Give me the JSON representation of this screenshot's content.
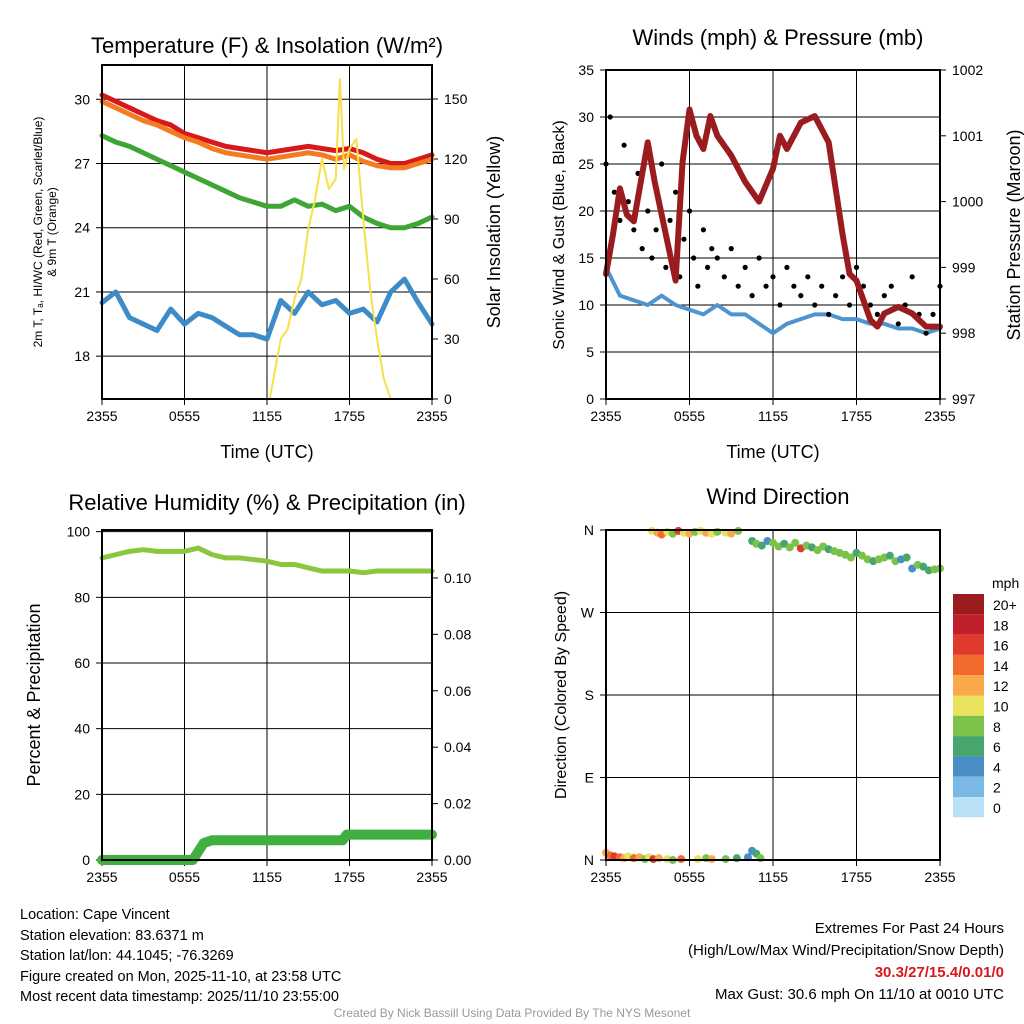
{
  "footer": {
    "location": "Location: Cape Vincent",
    "elevation": "Station elevation: 83.6371 m",
    "latlon": "Station lat/lon: 44.1045; -76.3269",
    "created": "Figure created on Mon, 2025-11-10, at 23:58 UTC",
    "recent": "Most recent data timestamp: 2025/11/10 23:55:00",
    "extremes_title": "Extremes For Past 24 Hours",
    "extremes_sub": "(High/Low/Max Wind/Precipitation/Snow Depth)",
    "extremes_values": "30.3/27/15.4/0.01/0",
    "max_gust": "Max Gust: 30.6 mph On 11/10 at 0010 UTC",
    "credit": "Created By Nick Bassill Using Data Provided By The NYS Mesonet"
  },
  "chart_data": [
    {
      "type": "line",
      "title": "Temperature (F) & Insolation (W/m²)",
      "xlabel": "Time (UTC)",
      "ylabel": "2m T, Td, HI/WC (Red, Green, Scarlet/Blue) & 9m T (Orange)",
      "ylabel_l1": "2m T, Tₐ, HI/WC (Red, Green, Scarlet/Blue)",
      "ylabel_l2": "& 9m T (Orange)",
      "y2label": "Solar Insolation (Yellow)",
      "xticks": [
        "2355",
        "0555",
        "1155",
        "1755",
        "2355"
      ],
      "ylim": [
        16,
        31.6
      ],
      "yticks": [
        18,
        21,
        24,
        27,
        30
      ],
      "y2lim": [
        0,
        167
      ],
      "y2ticks": [
        0,
        30,
        60,
        90,
        120,
        150
      ],
      "x_hours": [
        0,
        1,
        2,
        3,
        4,
        5,
        6,
        7,
        8,
        9,
        10,
        11,
        12,
        13,
        14,
        15,
        16,
        17,
        18,
        19,
        20,
        21,
        22,
        23,
        24
      ],
      "series": [
        {
          "name": "2m T",
          "color": "#d7191c",
          "axis": "left",
          "values": [
            30.2,
            29.9,
            29.6,
            29.3,
            29.0,
            28.8,
            28.4,
            28.2,
            28.0,
            27.8,
            27.7,
            27.6,
            27.5,
            27.6,
            27.7,
            27.8,
            27.7,
            27.6,
            27.7,
            27.5,
            27.2,
            27.0,
            27.0,
            27.2,
            27.4
          ]
        },
        {
          "name": "9m T",
          "color": "#f47b20",
          "axis": "left",
          "values": [
            29.9,
            29.6,
            29.3,
            29.0,
            28.8,
            28.5,
            28.2,
            28.0,
            27.7,
            27.5,
            27.4,
            27.3,
            27.2,
            27.3,
            27.4,
            27.5,
            27.4,
            27.2,
            27.4,
            27.1,
            26.9,
            26.8,
            26.8,
            27.0,
            27.2
          ]
        },
        {
          "name": "Td",
          "color": "#3fa535",
          "axis": "left",
          "values": [
            28.3,
            28.0,
            27.8,
            27.5,
            27.2,
            26.9,
            26.6,
            26.3,
            26.0,
            25.7,
            25.4,
            25.2,
            25.0,
            25.0,
            25.3,
            25.0,
            25.1,
            24.8,
            25.0,
            24.5,
            24.2,
            24.0,
            24.0,
            24.2,
            24.5
          ]
        },
        {
          "name": "WC",
          "color": "#3d8cc7",
          "axis": "left",
          "values": [
            20.5,
            21.0,
            19.8,
            19.5,
            19.2,
            20.2,
            19.5,
            20.0,
            19.8,
            19.4,
            19.0,
            19.0,
            18.8,
            20.6,
            20.0,
            21.0,
            20.4,
            20.6,
            20.0,
            20.2,
            19.6,
            21.0,
            21.6,
            20.5,
            19.5
          ]
        },
        {
          "name": "Solar",
          "color": "#f7e04a",
          "axis": "right",
          "x_hours": [
            0,
            12.2,
            12.6,
            13,
            13.5,
            14,
            14.5,
            15,
            15.5,
            16,
            16.5,
            17,
            17.3,
            17.6,
            18,
            18.5,
            19,
            19.5,
            20,
            20.5,
            21,
            24
          ],
          "values": [
            0,
            0,
            15,
            30,
            35,
            50,
            60,
            85,
            100,
            120,
            105,
            110,
            160,
            115,
            125,
            130,
            90,
            55,
            30,
            10,
            0,
            0
          ]
        }
      ]
    },
    {
      "type": "line+scatter",
      "title": "Winds (mph) & Pressure (mb)",
      "xlabel": "Time (UTC)",
      "ylabel": "Sonic Wind & Gust (Blue, Black)",
      "y2label": "Station Pressure (Maroon)",
      "xticks": [
        "2355",
        "0555",
        "1155",
        "1755",
        "2355"
      ],
      "ylim": [
        0,
        35
      ],
      "yticks": [
        0,
        5,
        10,
        15,
        20,
        25,
        30,
        35
      ],
      "y2lim": [
        997,
        1002
      ],
      "y2ticks": [
        997,
        998,
        999,
        1000,
        1001,
        1002
      ],
      "wind": {
        "color": "#4f93cf",
        "x_hours": [
          0,
          1,
          2,
          3,
          4,
          5,
          6,
          7,
          8,
          9,
          10,
          11,
          12,
          13,
          14,
          15,
          16,
          17,
          18,
          19,
          20,
          21,
          22,
          23,
          24
        ],
        "values": [
          14,
          11,
          10.5,
          10,
          11,
          10,
          9.5,
          9,
          10,
          9,
          9,
          8,
          7,
          8,
          8.5,
          9,
          9,
          8.5,
          8.5,
          8,
          8,
          7.5,
          7.5,
          7,
          7.5
        ]
      },
      "gust": {
        "color": "#000000",
        "x_hours": [
          0,
          0.3,
          0.6,
          1,
          1.3,
          1.6,
          2,
          2.3,
          2.6,
          3,
          3.3,
          3.6,
          4,
          4.3,
          4.6,
          5,
          5.3,
          5.6,
          6,
          6.3,
          6.6,
          7,
          7.3,
          7.6,
          8,
          8.5,
          9,
          9.5,
          10,
          10.5,
          11,
          11.5,
          12,
          12.5,
          13,
          13.5,
          14,
          14.5,
          15,
          15.5,
          16,
          16.5,
          17,
          17.5,
          18,
          18.5,
          19,
          19.5,
          20,
          20.5,
          21,
          21.5,
          22,
          22.5,
          23,
          23.5,
          24
        ],
        "values": [
          25,
          30,
          22,
          19,
          27,
          21,
          18,
          24,
          16,
          20,
          15,
          18,
          25,
          14,
          19,
          22,
          13,
          17,
          20,
          15,
          12,
          18,
          14,
          16,
          15,
          13,
          16,
          12,
          14,
          11,
          15,
          12,
          13,
          10,
          14,
          12,
          11,
          13,
          10,
          12,
          9,
          11,
          13,
          10,
          14,
          12,
          10,
          9,
          11,
          12,
          8,
          10,
          13,
          9,
          7,
          9,
          12
        ]
      },
      "pressure": {
        "color": "#9b1c1f",
        "x_hours": [
          0,
          0.5,
          1,
          1.5,
          2,
          2.5,
          3,
          3.5,
          4,
          4.5,
          5,
          5.5,
          6,
          6.5,
          7,
          7.5,
          8,
          9,
          10,
          11,
          12,
          12.5,
          13,
          14,
          15,
          16,
          16.5,
          17,
          17.5,
          18,
          18.5,
          19,
          19.5,
          20,
          21,
          22,
          23,
          24
        ],
        "values": [
          998.9,
          999.5,
          1000.2,
          999.8,
          999.7,
          1000.3,
          1000.9,
          1000.3,
          999.8,
          999.3,
          998.8,
          1000.6,
          1001.4,
          1001.0,
          1000.8,
          1001.3,
          1001.0,
          1000.7,
          1000.3,
          1000.0,
          1000.5,
          1001.0,
          1000.8,
          1001.2,
          1001.3,
          1000.9,
          1000.2,
          999.5,
          998.9,
          998.8,
          998.5,
          998.2,
          998.1,
          998.3,
          998.4,
          998.3,
          998.1,
          998.1
        ]
      }
    },
    {
      "type": "line",
      "title": "Relative Humidity (%) & Precipitation (in)",
      "ylabel": "Percent & Precipitation",
      "xticks": [
        "2355",
        "0555",
        "1155",
        "1755",
        "2355"
      ],
      "ylim": [
        0,
        100.5
      ],
      "yticks": [
        0,
        20,
        40,
        60,
        80,
        100
      ],
      "y2lim": [
        0,
        0.117
      ],
      "y2ticks": [
        "0.00",
        "0.02",
        "0.04",
        "0.06",
        "0.08",
        "0.10"
      ],
      "rh": {
        "color": "#8cc63f",
        "x_hours": [
          0,
          1,
          2,
          3,
          4,
          5,
          6,
          7,
          8,
          9,
          10,
          11,
          12,
          13,
          14,
          15,
          16,
          17,
          18,
          19,
          20,
          21,
          22,
          23,
          24
        ],
        "values": [
          92,
          93,
          94,
          94.5,
          94,
          94,
          94,
          95,
          93,
          92,
          92,
          91.5,
          91,
          90,
          90,
          89,
          88,
          88,
          88,
          87.5,
          88,
          88,
          88,
          88,
          88
        ]
      },
      "precip": {
        "color": "#3fb03f",
        "x_hours": [
          0,
          6.6,
          7,
          7.4,
          8,
          10,
          12,
          14,
          16,
          17.5,
          17.8,
          18,
          20,
          22,
          24
        ],
        "values": [
          0,
          0,
          0.003,
          0.006,
          0.007,
          0.007,
          0.007,
          0.007,
          0.007,
          0.007,
          0.009,
          0.009,
          0.009,
          0.009,
          0.009
        ]
      }
    },
    {
      "type": "scatter",
      "title": "Wind Direction",
      "ylabel": "Direction (Colored By Speed)",
      "xticks": [
        "2355",
        "0555",
        "1155",
        "1755",
        "2355"
      ],
      "ylim": [
        0,
        360
      ],
      "yticks": [
        {
          "v": 0,
          "l": "N"
        },
        {
          "v": 90,
          "l": "E"
        },
        {
          "v": 180,
          "l": "S"
        },
        {
          "v": 270,
          "l": "W"
        },
        {
          "v": 360,
          "l": "N"
        }
      ],
      "legend": {
        "title": "mph",
        "labels": [
          "20+",
          "18",
          "16",
          "14",
          "12",
          "10",
          "8",
          "6",
          "4",
          "2",
          "0"
        ],
        "colors": [
          "#9b1c1f",
          "#c0202a",
          "#e03a2e",
          "#f26a2c",
          "#f9a94a",
          "#e8e25c",
          "#7cc24a",
          "#47a56e",
          "#4a8ec6",
          "#7ab8e6",
          "#b9e1f7"
        ]
      },
      "points": [
        [
          0,
          8,
          12
        ],
        [
          0.3,
          5,
          14
        ],
        [
          0.6,
          4,
          16
        ],
        [
          1,
          3,
          14
        ],
        [
          1.3,
          2,
          12
        ],
        [
          1.6,
          4,
          10
        ],
        [
          2,
          2,
          14
        ],
        [
          2.4,
          3,
          12
        ],
        [
          2.8,
          1,
          8
        ],
        [
          3.1,
          3,
          10
        ],
        [
          3.4,
          1,
          16
        ],
        [
          3.8,
          2,
          12
        ],
        [
          4.4,
          1,
          10
        ],
        [
          4.8,
          0,
          8
        ],
        [
          5.4,
          1,
          14
        ],
        [
          6.6,
          1,
          10
        ],
        [
          7.2,
          2,
          8
        ],
        [
          7.6,
          1,
          12
        ],
        [
          8.6,
          1,
          8
        ],
        [
          9.4,
          2,
          6
        ],
        [
          10.2,
          3,
          4
        ],
        [
          10.5,
          10,
          4
        ],
        [
          10.8,
          7,
          6
        ],
        [
          11.1,
          2,
          8
        ],
        [
          3.3,
          359,
          10
        ],
        [
          3.7,
          357,
          12
        ],
        [
          4,
          355,
          14
        ],
        [
          4.4,
          358,
          10
        ],
        [
          4.8,
          356,
          8
        ],
        [
          5.2,
          359,
          16
        ],
        [
          5.6,
          357,
          10
        ],
        [
          6,
          356,
          12
        ],
        [
          6.4,
          358,
          8
        ],
        [
          6.8,
          359,
          10
        ],
        [
          7.2,
          357,
          12
        ],
        [
          7.6,
          356,
          10
        ],
        [
          8,
          358,
          8
        ],
        [
          8.6,
          357,
          10
        ],
        [
          9,
          356,
          12
        ],
        [
          9.5,
          359,
          8
        ],
        [
          10.5,
          348,
          6
        ],
        [
          10.8,
          345,
          8
        ],
        [
          11.2,
          343,
          6
        ],
        [
          11.6,
          348,
          4
        ],
        [
          12,
          346,
          8
        ],
        [
          12.4,
          342,
          8
        ],
        [
          12.8,
          345,
          6
        ],
        [
          13.2,
          341,
          8
        ],
        [
          13.6,
          346,
          8
        ],
        [
          14,
          340,
          16
        ],
        [
          14.4,
          343,
          8
        ],
        [
          14.8,
          341,
          6
        ],
        [
          15.2,
          338,
          8
        ],
        [
          15.6,
          342,
          8
        ],
        [
          16,
          339,
          6
        ],
        [
          16.4,
          337,
          8
        ],
        [
          16.8,
          335,
          8
        ],
        [
          17.2,
          333,
          8
        ],
        [
          17.6,
          330,
          8
        ],
        [
          18,
          335,
          6
        ],
        [
          18.4,
          332,
          8
        ],
        [
          18.8,
          328,
          8
        ],
        [
          19.2,
          326,
          6
        ],
        [
          19.6,
          328,
          8
        ],
        [
          20,
          330,
          8
        ],
        [
          20.4,
          332,
          6
        ],
        [
          20.8,
          326,
          8
        ],
        [
          21.2,
          328,
          4
        ],
        [
          21.6,
          330,
          6
        ],
        [
          22,
          318,
          4
        ],
        [
          22.4,
          322,
          8
        ],
        [
          22.8,
          320,
          6
        ],
        [
          23.2,
          316,
          6
        ],
        [
          23.6,
          317,
          8
        ],
        [
          24,
          318,
          8
        ]
      ]
    }
  ]
}
